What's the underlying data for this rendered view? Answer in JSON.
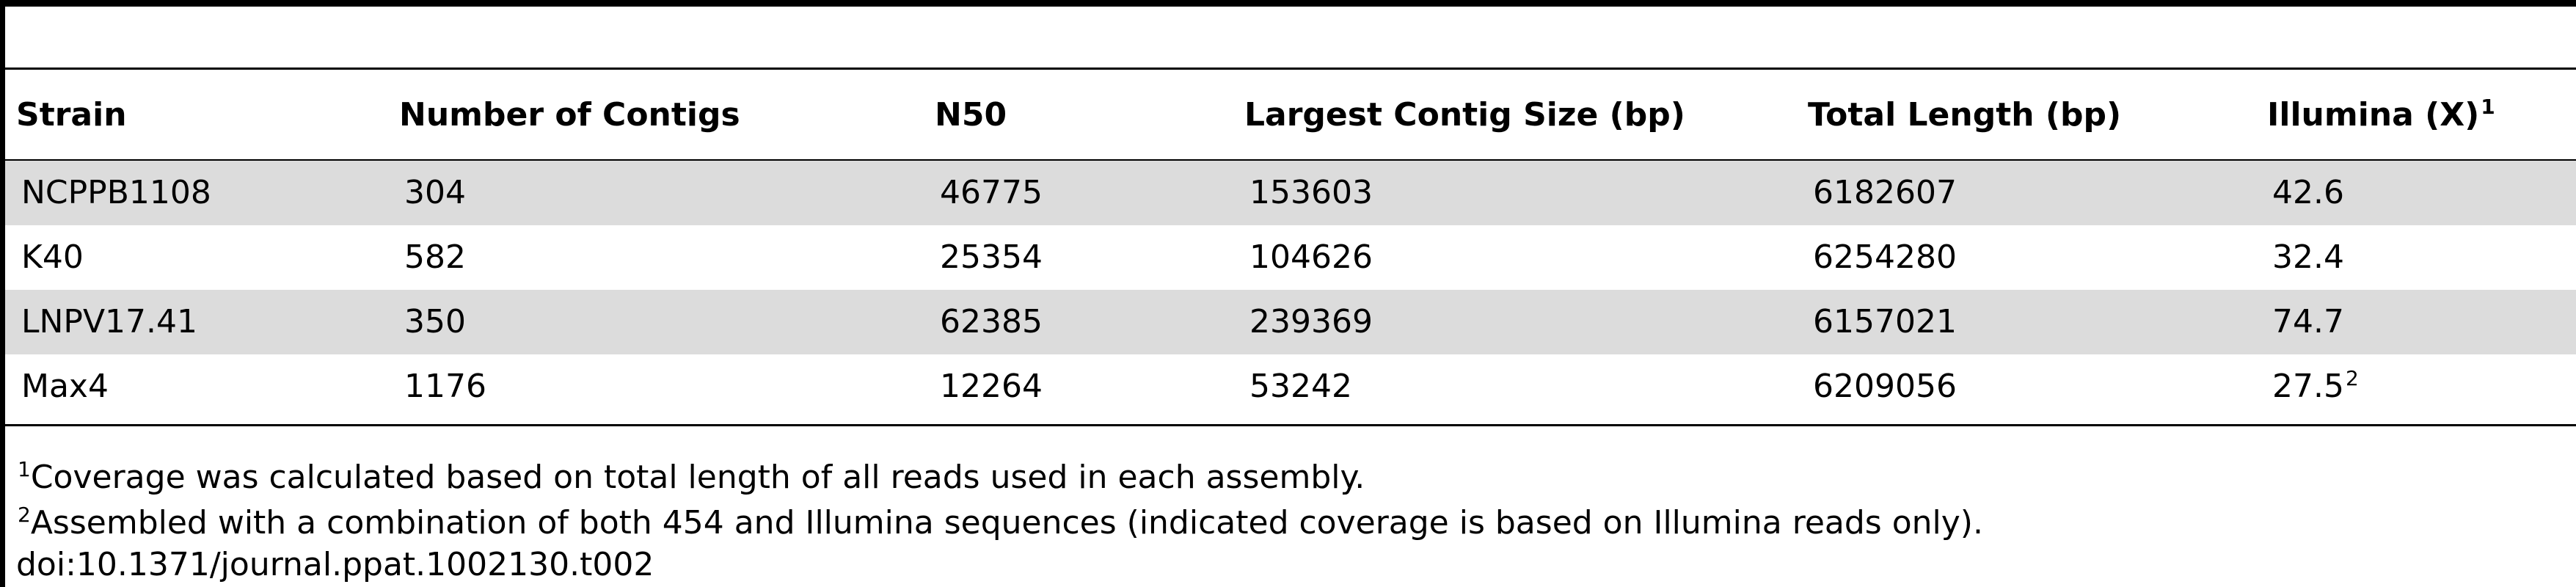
{
  "table": {
    "headers": [
      "Strain",
      "Number of Contigs",
      "N50",
      "Largest Contig Size (bp)",
      "Total Length (bp)",
      "Illumina (X)"
    ],
    "header_sup": "1",
    "rows": [
      {
        "strain": "NCPPB1108",
        "contigs": "304",
        "n50": "46775",
        "largest": "153603",
        "total": "6182607",
        "illumina": "42.6",
        "illumina_sup": ""
      },
      {
        "strain": "K40",
        "contigs": "582",
        "n50": "25354",
        "largest": "104626",
        "total": "6254280",
        "illumina": "32.4",
        "illumina_sup": ""
      },
      {
        "strain": "LNPV17.41",
        "contigs": "350",
        "n50": "62385",
        "largest": "239369",
        "total": "6157021",
        "illumina": "74.7",
        "illumina_sup": ""
      },
      {
        "strain": "Max4",
        "contigs": "1176",
        "n50": "12264",
        "largest": "53242",
        "total": "6209056",
        "illumina": "27.5",
        "illumina_sup": "2"
      }
    ]
  },
  "footnotes": [
    {
      "marker": "1",
      "text": "Coverage was calculated based on total length of all reads used in each assembly."
    },
    {
      "marker": "2",
      "text": "Assembled with a combination of both 454 and Illumina sequences (indicated coverage is based on Illumina reads only)."
    }
  ],
  "doi": "doi:10.1371/journal.ppat.1002130.t002"
}
